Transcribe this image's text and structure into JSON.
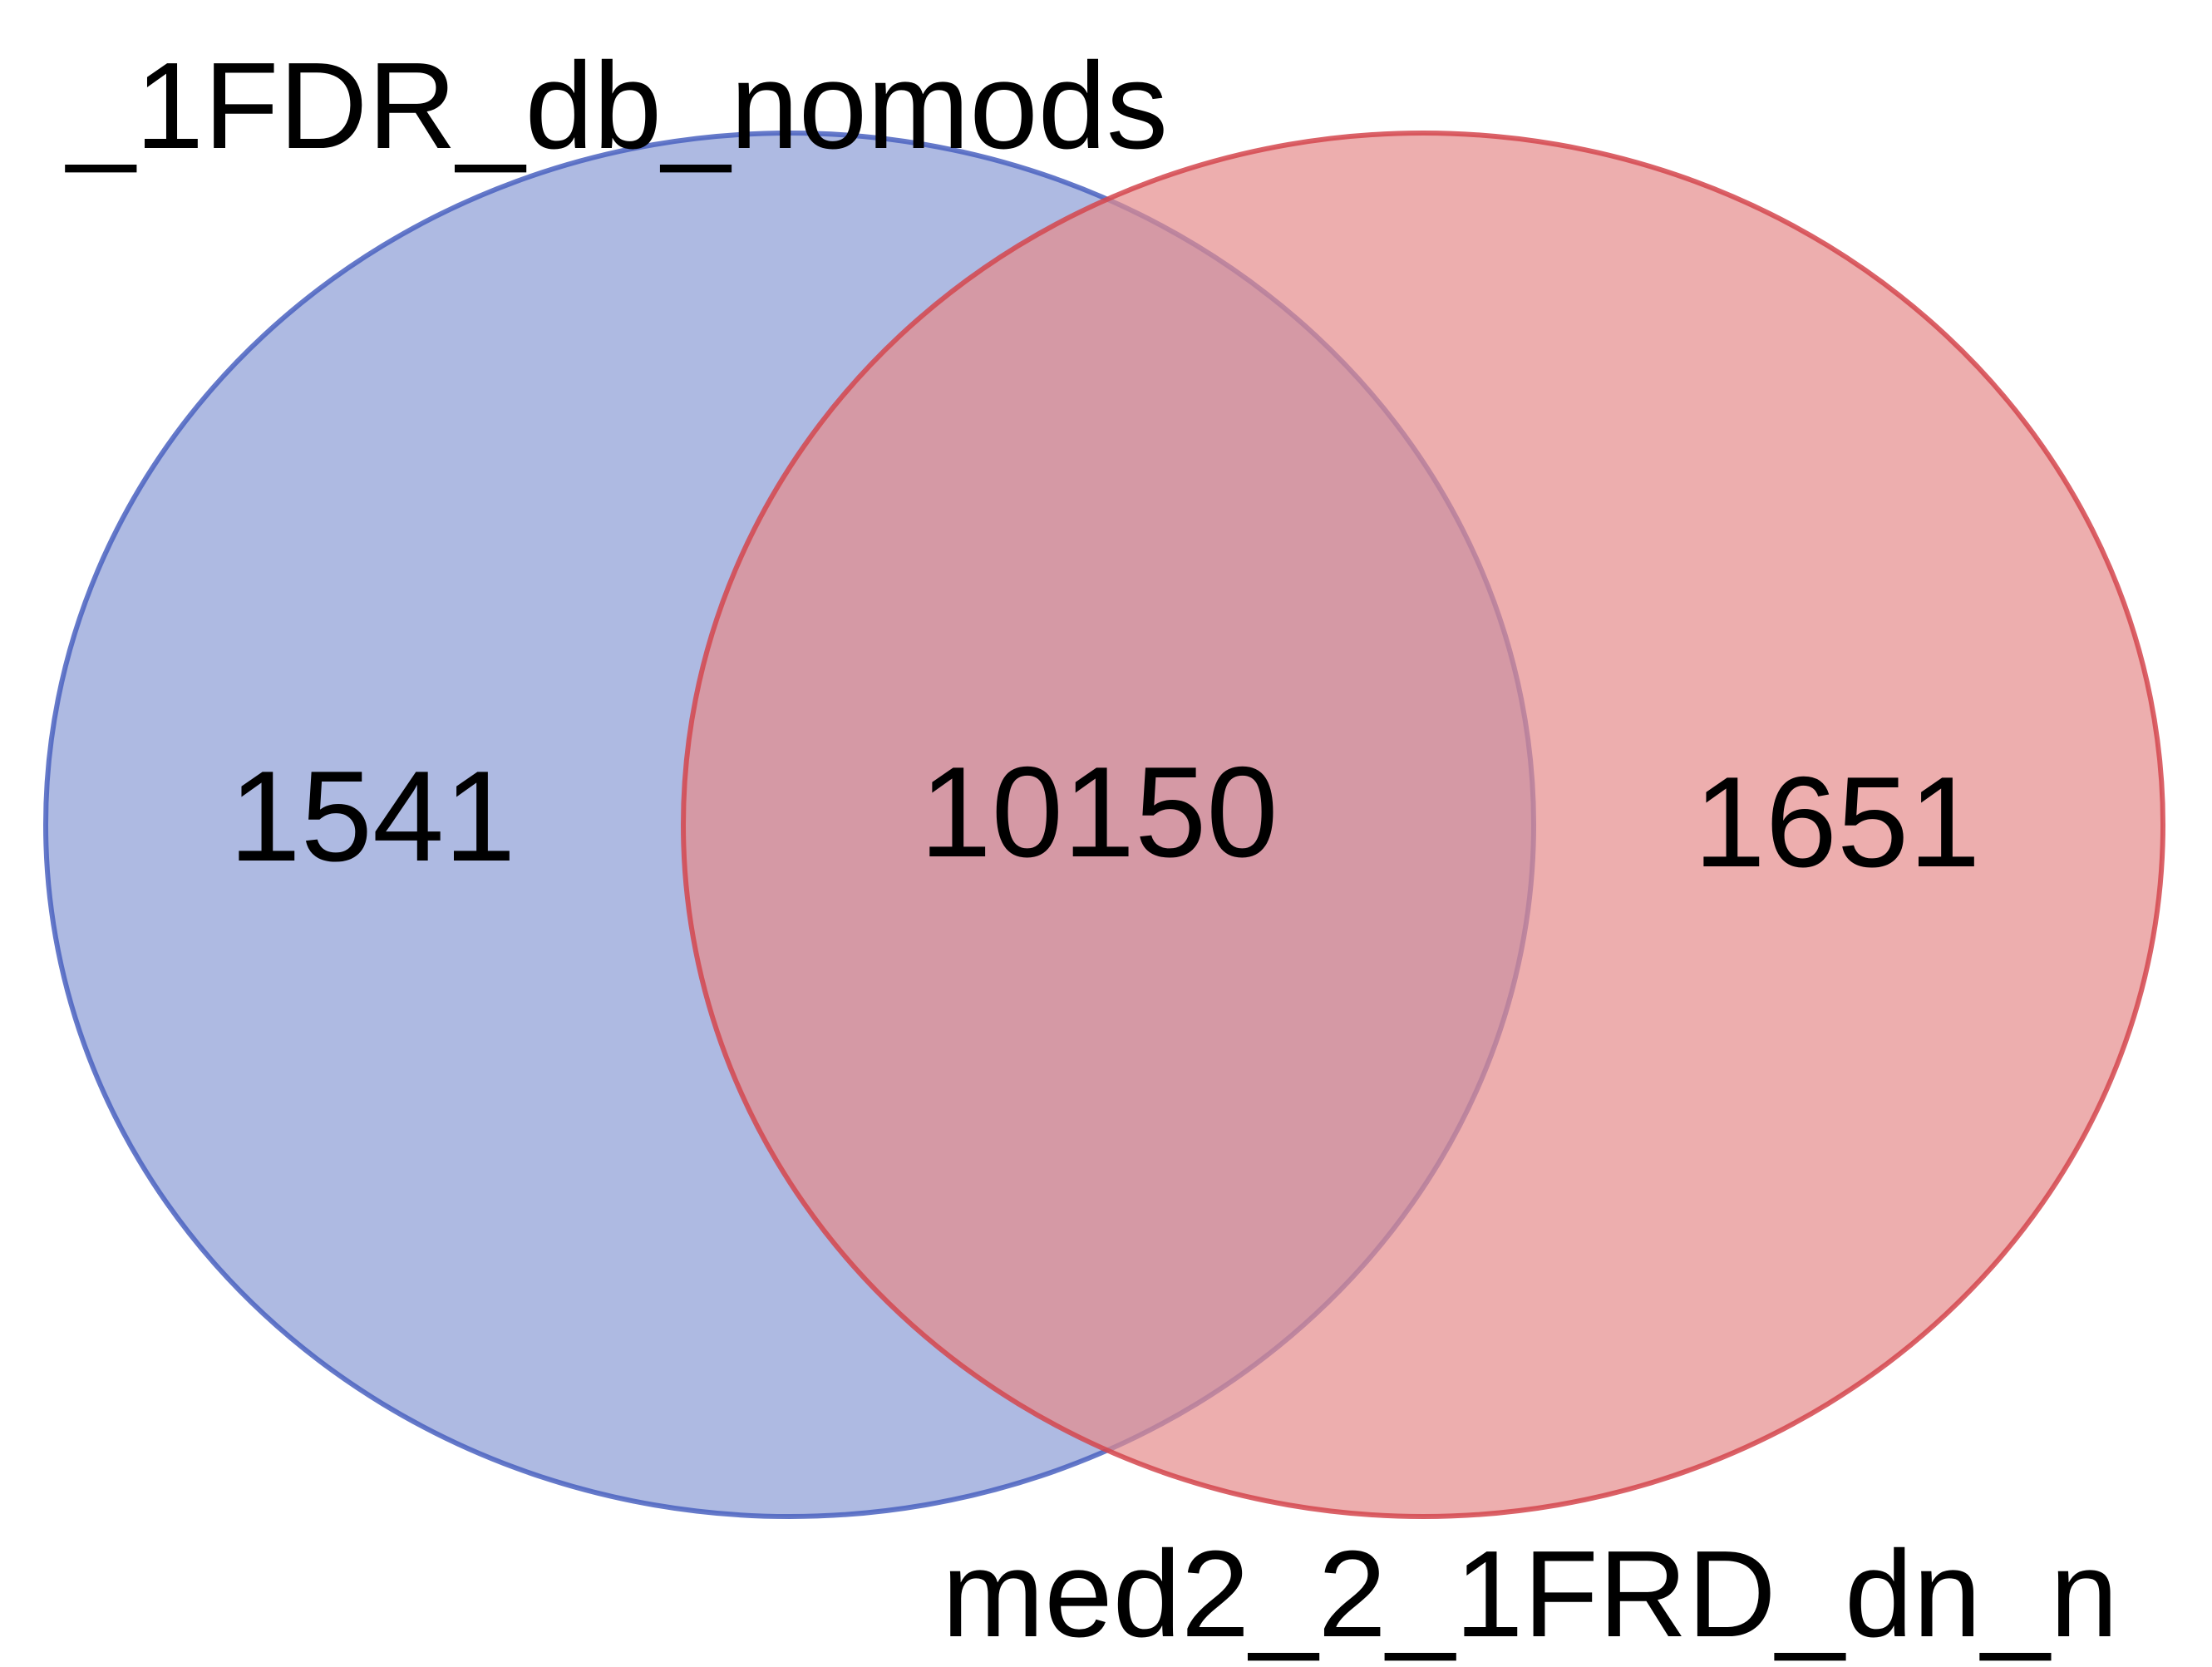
{
  "chart_data": {
    "type": "venn",
    "sets": [
      {
        "label": "_1FDR_db_nomods",
        "only_count": "1541",
        "color": "#5b76c8",
        "fill_color": "#8b9dd6",
        "stroke_color": "#4a62bf"
      },
      {
        "label": "med2_2_1FRD_dn_n",
        "only_count": "1651",
        "color": "#dc5a5e",
        "fill_color": "#e58b8c",
        "stroke_color": "#d4464d"
      }
    ],
    "intersection_count": "10150",
    "intersection_color": "#a95b76"
  }
}
